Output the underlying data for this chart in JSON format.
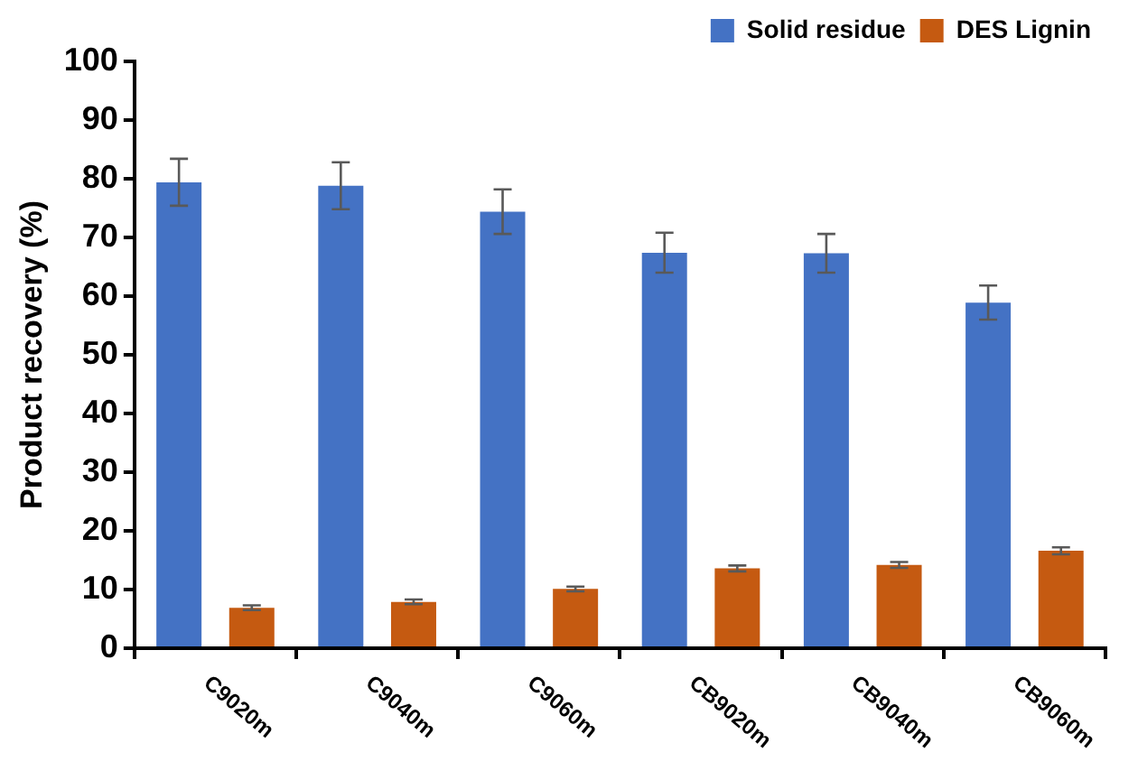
{
  "chart_data": {
    "type": "bar",
    "ylabel": "Product recovery (%)",
    "categories": [
      "C9020m",
      "C9040m",
      "C9060m",
      "CB9020m",
      "CB9040m",
      "CB9060m"
    ],
    "series": [
      {
        "name": "Solid residue",
        "color": "#4472c4",
        "values": [
          79.4,
          78.8,
          74.4,
          67.4,
          67.3,
          58.9
        ],
        "errors": [
          4,
          4,
          3.8,
          3.4,
          3.3,
          2.9
        ]
      },
      {
        "name": "DES Lignin",
        "color": "#c55a11",
        "values": [
          6.9,
          7.9,
          10.1,
          13.6,
          14.2,
          16.6
        ],
        "errors": [
          0.4,
          0.4,
          0.4,
          0.5,
          0.5,
          0.6
        ]
      }
    ],
    "ylim": [
      0,
      100
    ],
    "yticks": [
      0,
      10,
      20,
      30,
      40,
      50,
      60,
      70,
      80,
      90,
      100
    ],
    "grid": false,
    "legend": "top right"
  }
}
